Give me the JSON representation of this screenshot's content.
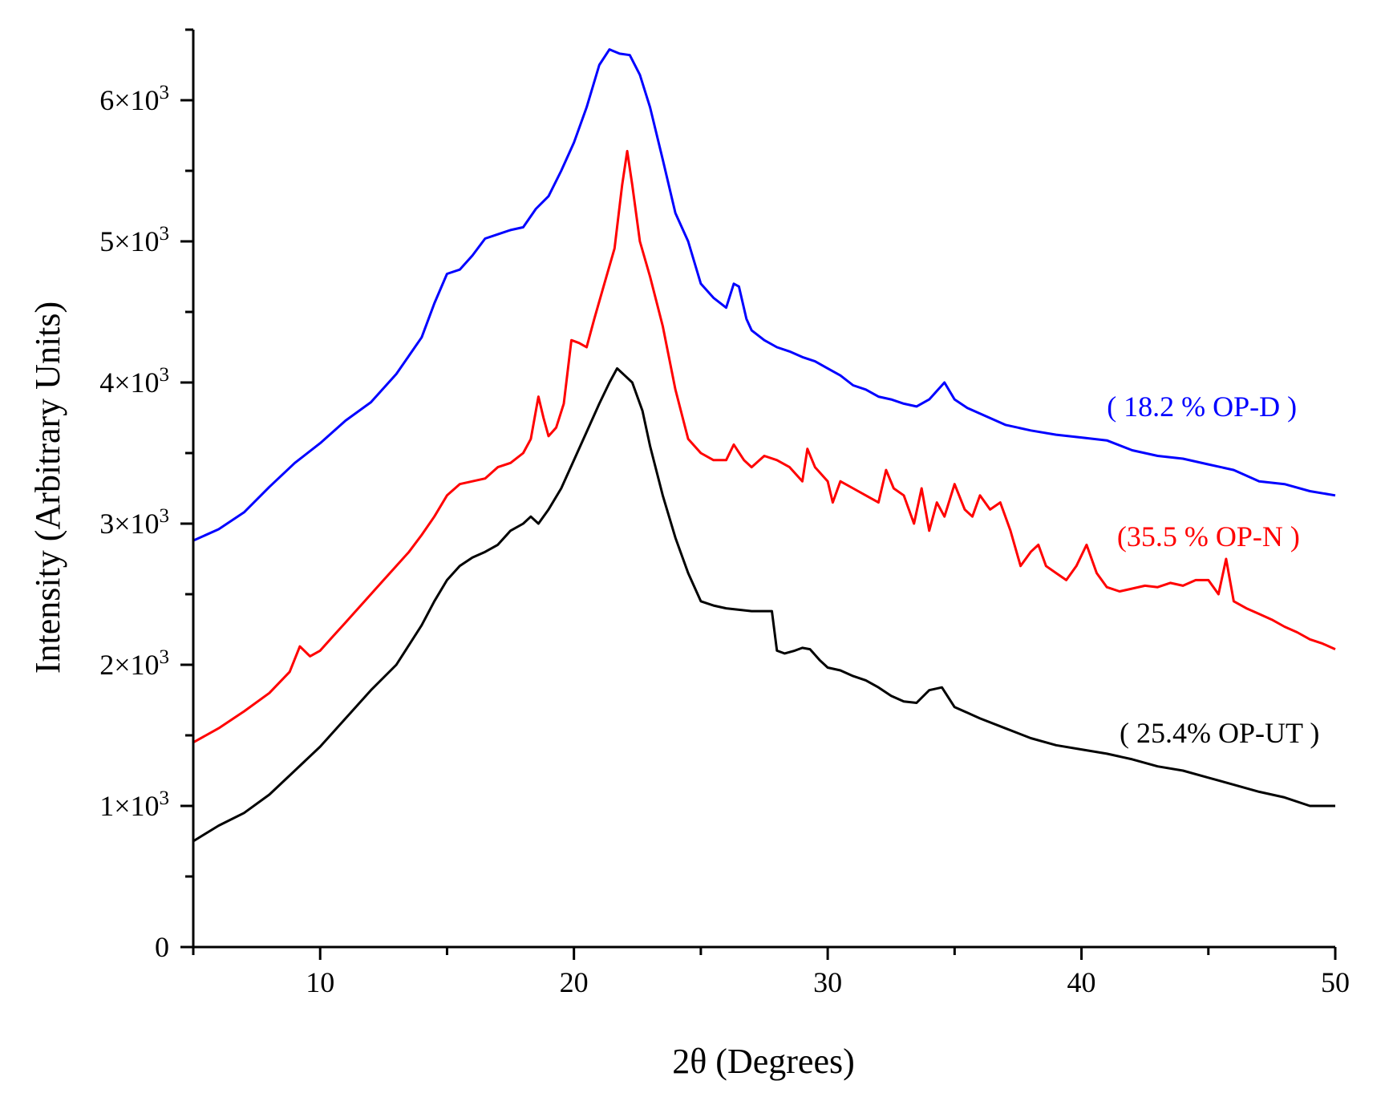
{
  "chart_data": {
    "type": "line",
    "title": "",
    "xlabel": "2θ (Degrees)",
    "ylabel": "Intensity (Arbitrary Units)",
    "xlim": [
      5,
      50
    ],
    "ylim": [
      0,
      6500
    ],
    "x_ticks": [
      {
        "value": 10,
        "label": "10"
      },
      {
        "value": 20,
        "label": "20"
      },
      {
        "value": 30,
        "label": "30"
      },
      {
        "value": 40,
        "label": "40"
      },
      {
        "value": 50,
        "label": "50"
      }
    ],
    "y_ticks": [
      {
        "value": 0,
        "label": "0"
      },
      {
        "value": 1000,
        "label": "1×10",
        "exp": "3"
      },
      {
        "value": 2000,
        "label": "2×10",
        "exp": "3"
      },
      {
        "value": 3000,
        "label": "3×10",
        "exp": "3"
      },
      {
        "value": 4000,
        "label": "4×10",
        "exp": "3"
      },
      {
        "value": 5000,
        "label": "5×10",
        "exp": "3"
      },
      {
        "value": 6000,
        "label": "6×10",
        "exp": "3"
      }
    ],
    "grid": false,
    "series": [
      {
        "name": "OP-D",
        "label": "( 18.2 %  OP-D )",
        "color": "#0000ff",
        "label_anchor": [
          41,
          3760
        ],
        "x": [
          5,
          6,
          7,
          8,
          9,
          10,
          11,
          12,
          13,
          14,
          14.5,
          15,
          15.5,
          16,
          16.5,
          17,
          17.5,
          18,
          18.5,
          19,
          19.5,
          20,
          20.5,
          21,
          21.4,
          21.8,
          22.2,
          22.6,
          23,
          23.5,
          24,
          24.5,
          25,
          25.5,
          26,
          26.3,
          26.5,
          26.8,
          27,
          27.5,
          28,
          28.5,
          29,
          29.5,
          30,
          30.5,
          31,
          31.5,
          32,
          32.5,
          33,
          33.5,
          34,
          34.6,
          35,
          35.5,
          36,
          37,
          38,
          39,
          40,
          41,
          42,
          43,
          44,
          45,
          46,
          47,
          48,
          49,
          50
        ],
        "y": [
          2880,
          2960,
          3080,
          3260,
          3430,
          3570,
          3730,
          3860,
          4060,
          4320,
          4560,
          4770,
          4800,
          4900,
          5020,
          5050,
          5080,
          5100,
          5230,
          5320,
          5500,
          5700,
          5950,
          6250,
          6360,
          6330,
          6320,
          6180,
          5950,
          5580,
          5200,
          5000,
          4700,
          4600,
          4530,
          4700,
          4680,
          4450,
          4370,
          4300,
          4250,
          4220,
          4180,
          4150,
          4100,
          4050,
          3980,
          3950,
          3900,
          3880,
          3850,
          3830,
          3880,
          4000,
          3880,
          3820,
          3780,
          3700,
          3660,
          3630,
          3610,
          3590,
          3520,
          3480,
          3460,
          3420,
          3380,
          3300,
          3280,
          3230,
          3200
        ]
      },
      {
        "name": "OP-N",
        "label": "(35.5 % OP-N )",
        "color": "#ff0000",
        "label_anchor": [
          41.4,
          2840
        ],
        "x": [
          5,
          6,
          7,
          8,
          8.8,
          9.2,
          9.6,
          10,
          10.5,
          11,
          11.5,
          12,
          12.5,
          13,
          13.5,
          14,
          14.5,
          15,
          15.5,
          16,
          16.5,
          17,
          17.5,
          18,
          18.3,
          18.6,
          18.8,
          19,
          19.3,
          19.6,
          19.9,
          20.2,
          20.5,
          20.8,
          21.2,
          21.6,
          21.9,
          22.1,
          22.3,
          22.6,
          23,
          23.5,
          24,
          24.5,
          25,
          25.5,
          26,
          26.3,
          26.7,
          27,
          27.5,
          28,
          28.5,
          29,
          29.2,
          29.5,
          30,
          30.2,
          30.5,
          31,
          31.5,
          32,
          32.3,
          32.6,
          33,
          33.4,
          33.7,
          34,
          34.3,
          34.6,
          35,
          35.4,
          35.7,
          36,
          36.4,
          36.8,
          37.2,
          37.6,
          38,
          38.3,
          38.6,
          39,
          39.4,
          39.8,
          40.2,
          40.6,
          41,
          41.5,
          42,
          42.5,
          43,
          43.5,
          44,
          44.5,
          45,
          45.4,
          45.7,
          46,
          46.5,
          47,
          47.5,
          48,
          48.5,
          49,
          49.5,
          50
        ],
        "y": [
          1450,
          1550,
          1670,
          1800,
          1950,
          2130,
          2060,
          2100,
          2200,
          2300,
          2400,
          2500,
          2600,
          2700,
          2800,
          2920,
          3050,
          3200,
          3280,
          3300,
          3320,
          3400,
          3430,
          3500,
          3600,
          3900,
          3750,
          3620,
          3680,
          3850,
          4300,
          4280,
          4250,
          4450,
          4700,
          4950,
          5400,
          5640,
          5400,
          5000,
          4750,
          4400,
          3950,
          3600,
          3500,
          3450,
          3450,
          3560,
          3450,
          3400,
          3480,
          3450,
          3400,
          3300,
          3530,
          3400,
          3300,
          3150,
          3300,
          3250,
          3200,
          3150,
          3380,
          3250,
          3200,
          3000,
          3250,
          2950,
          3150,
          3050,
          3280,
          3100,
          3050,
          3200,
          3100,
          3150,
          2950,
          2700,
          2800,
          2850,
          2700,
          2650,
          2600,
          2700,
          2850,
          2650,
          2550,
          2520,
          2540,
          2560,
          2550,
          2580,
          2560,
          2600,
          2600,
          2500,
          2750,
          2450,
          2400,
          2360,
          2320,
          2270,
          2230,
          2180,
          2150,
          2110
        ]
      },
      {
        "name": "OP-UT",
        "label": "( 25.4% OP-UT )",
        "color": "#000000",
        "label_anchor": [
          41.5,
          1450
        ],
        "x": [
          5,
          6,
          7,
          8,
          9,
          10,
          11,
          12,
          13,
          14,
          14.5,
          15,
          15.5,
          16,
          16.5,
          17,
          17.5,
          18,
          18.3,
          18.6,
          19,
          19.5,
          20,
          20.5,
          21,
          21.4,
          21.7,
          22,
          22.3,
          22.7,
          23,
          23.5,
          24,
          24.5,
          25,
          25.5,
          26,
          26.5,
          27,
          27.5,
          27.8,
          28,
          28.3,
          28.7,
          29,
          29.3,
          29.7,
          30,
          30.5,
          31,
          31.5,
          32,
          32.5,
          33,
          33.5,
          34,
          34.5,
          35,
          35.5,
          36,
          37,
          38,
          39,
          40,
          41,
          42,
          43,
          44,
          45,
          46,
          47,
          48,
          49,
          50
        ],
        "y": [
          750,
          860,
          950,
          1080,
          1250,
          1420,
          1620,
          1820,
          2000,
          2280,
          2450,
          2600,
          2700,
          2760,
          2800,
          2850,
          2950,
          3000,
          3050,
          3000,
          3100,
          3250,
          3450,
          3650,
          3850,
          4000,
          4100,
          4050,
          4000,
          3800,
          3550,
          3200,
          2900,
          2650,
          2450,
          2420,
          2400,
          2390,
          2380,
          2380,
          2380,
          2100,
          2080,
          2100,
          2120,
          2110,
          2030,
          1980,
          1960,
          1920,
          1890,
          1840,
          1780,
          1740,
          1730,
          1820,
          1840,
          1700,
          1660,
          1620,
          1550,
          1480,
          1430,
          1400,
          1370,
          1330,
          1280,
          1250,
          1200,
          1150,
          1100,
          1060,
          1000,
          1000
        ]
      }
    ]
  }
}
